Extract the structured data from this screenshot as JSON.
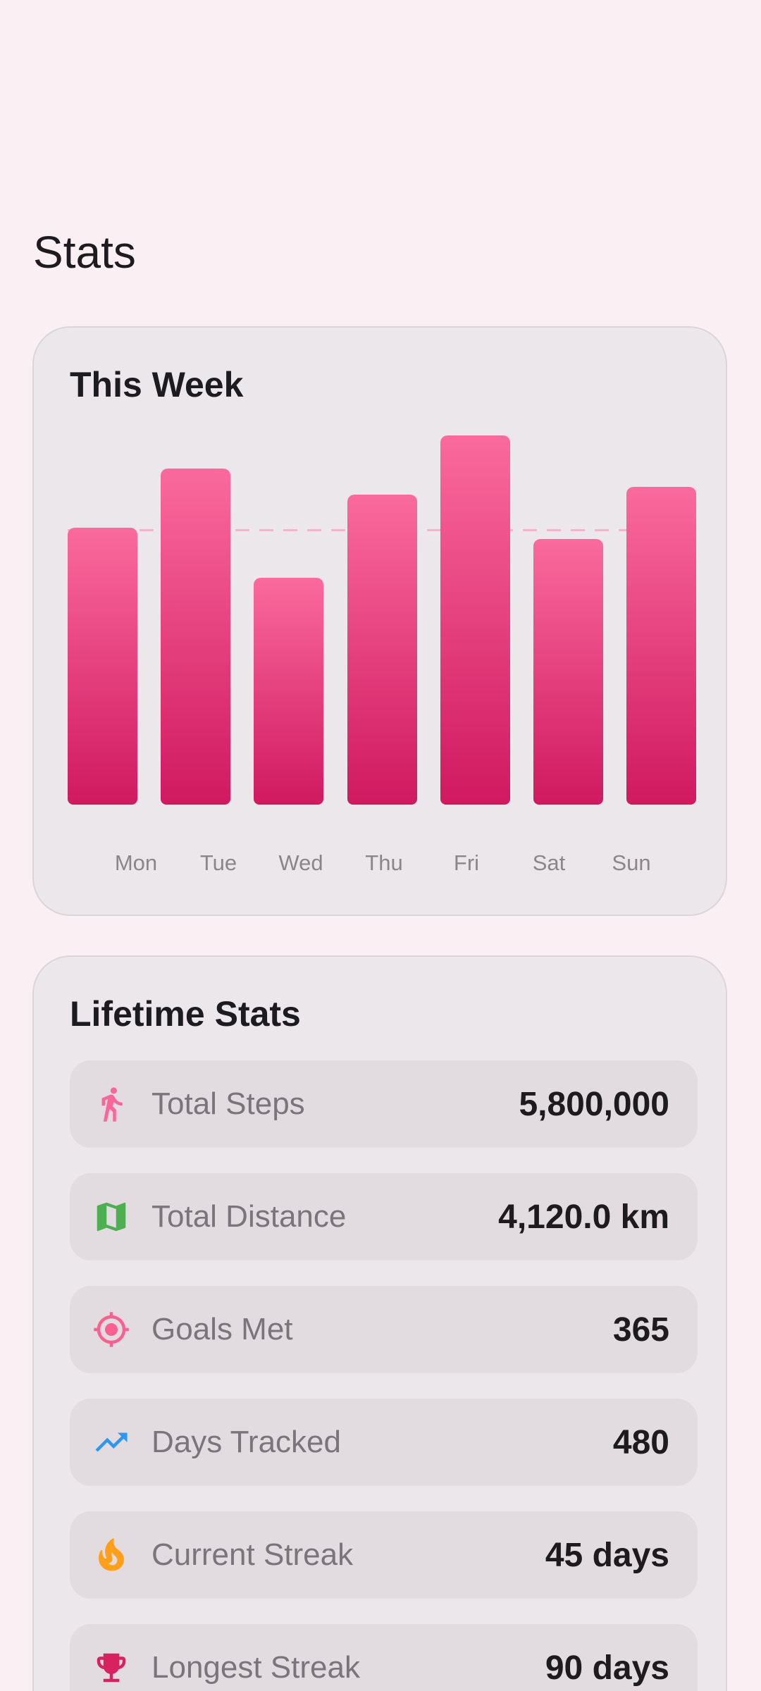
{
  "page": {
    "title": "Stats",
    "background": "#FAF0F4"
  },
  "week": {
    "title": "This Week"
  },
  "chart_data": {
    "type": "bar",
    "title": "This Week",
    "categories": [
      "Mon",
      "Tue",
      "Wed",
      "Thu",
      "Fri",
      "Sat",
      "Sun"
    ],
    "values": [
      75,
      91,
      61.5,
      84,
      100,
      72,
      86
    ],
    "unit": "percent-of-max (estimated; no axis labels shown)",
    "goal_line_value": 75,
    "xlabel": "",
    "ylabel": "",
    "grid": false,
    "legend": false,
    "bar_color_top": "#FA6A9C",
    "bar_color_bottom": "#D01960",
    "goal_line_color": "#F6B1CB"
  },
  "lifetime": {
    "title": "Lifetime Stats",
    "rows": [
      {
        "icon": "walk-icon",
        "icon_color": "#FB6699",
        "label": "Total Steps",
        "value": "5,800,000"
      },
      {
        "icon": "map-icon",
        "icon_color": "#4CAF50",
        "label": "Total Distance",
        "value": "4,120.0 km"
      },
      {
        "icon": "target-icon",
        "icon_color": "#FB6090",
        "label": "Goals Met",
        "value": "365"
      },
      {
        "icon": "trending-up-icon",
        "icon_color": "#2E96F0",
        "label": "Days Tracked",
        "value": "480"
      },
      {
        "icon": "flame-icon",
        "icon_color": "#FF9F1A",
        "label": "Current Streak",
        "value": "45 days"
      },
      {
        "icon": "trophy-icon",
        "icon_color": "#D8215F",
        "label": "Longest Streak",
        "value": "90 days"
      }
    ]
  }
}
